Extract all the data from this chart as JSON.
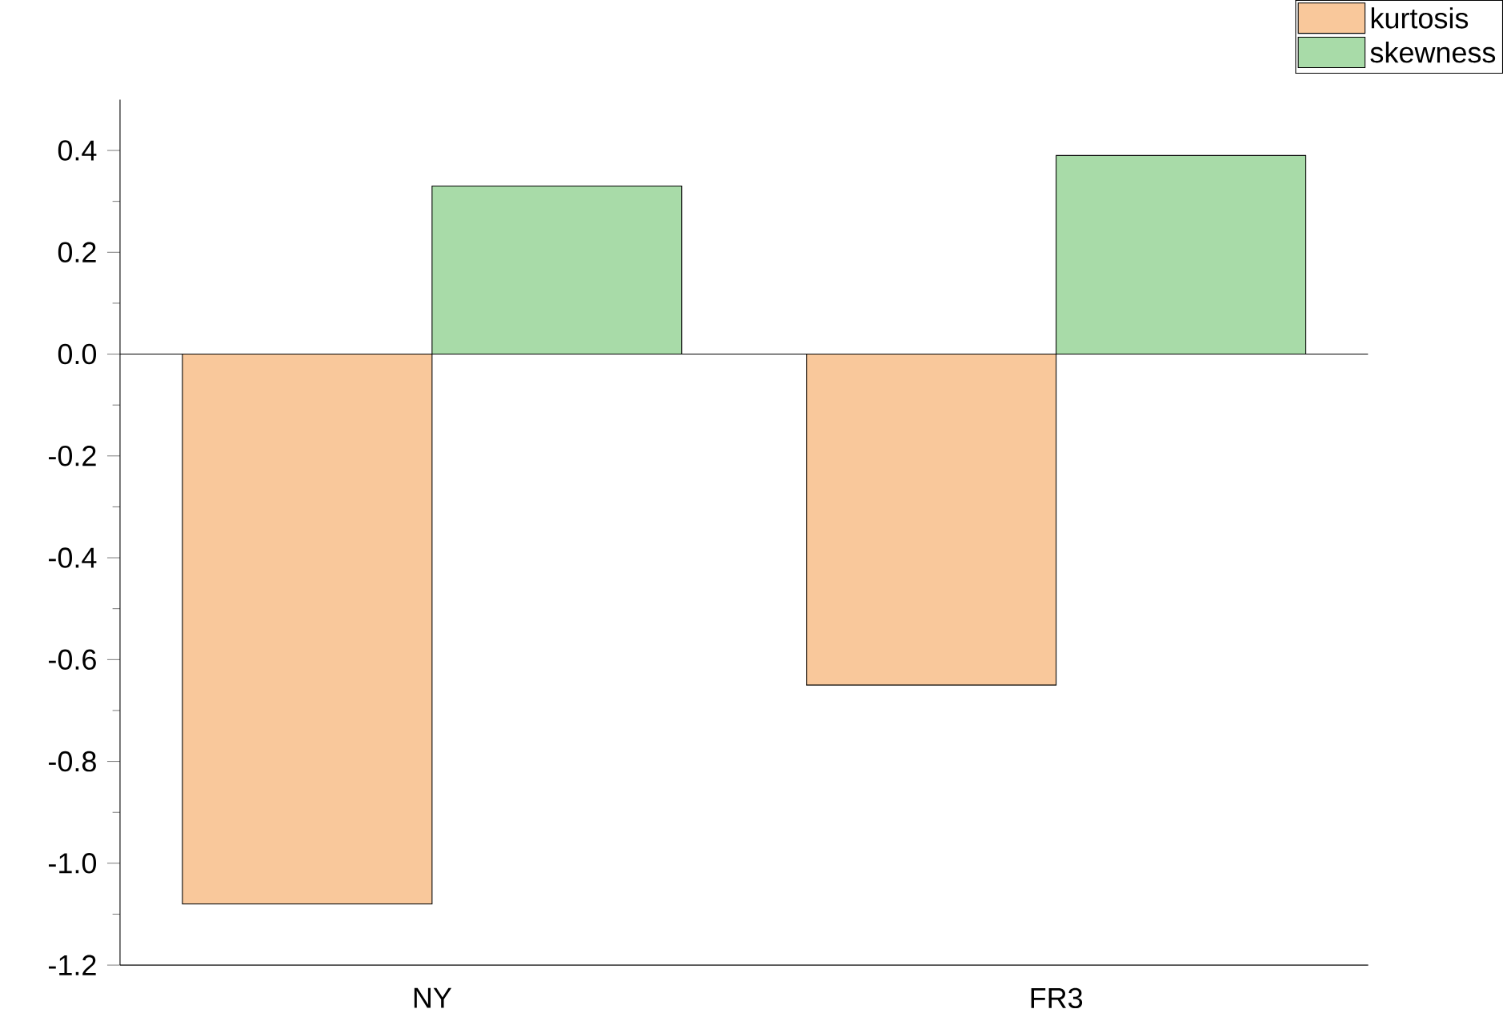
{
  "chart_data": {
    "type": "bar",
    "categories": [
      "NY",
      "FR3"
    ],
    "series": [
      {
        "name": "kurtosis",
        "color": "#f9c89b",
        "values": [
          -1.08,
          -0.65
        ]
      },
      {
        "name": "skewness",
        "color": "#a8dba8",
        "values": [
          0.33,
          0.39
        ]
      }
    ],
    "ylim": [
      -1.2,
      0.5
    ],
    "yticks": [
      -1.2,
      {
        "value": -1.0,
        "label": "-1.0"
      },
      -0.8,
      -0.6,
      -0.4,
      -0.2,
      {
        "value": 0.0,
        "label": "0.0"
      },
      0.2,
      0.4
    ],
    "legend": "top right"
  }
}
